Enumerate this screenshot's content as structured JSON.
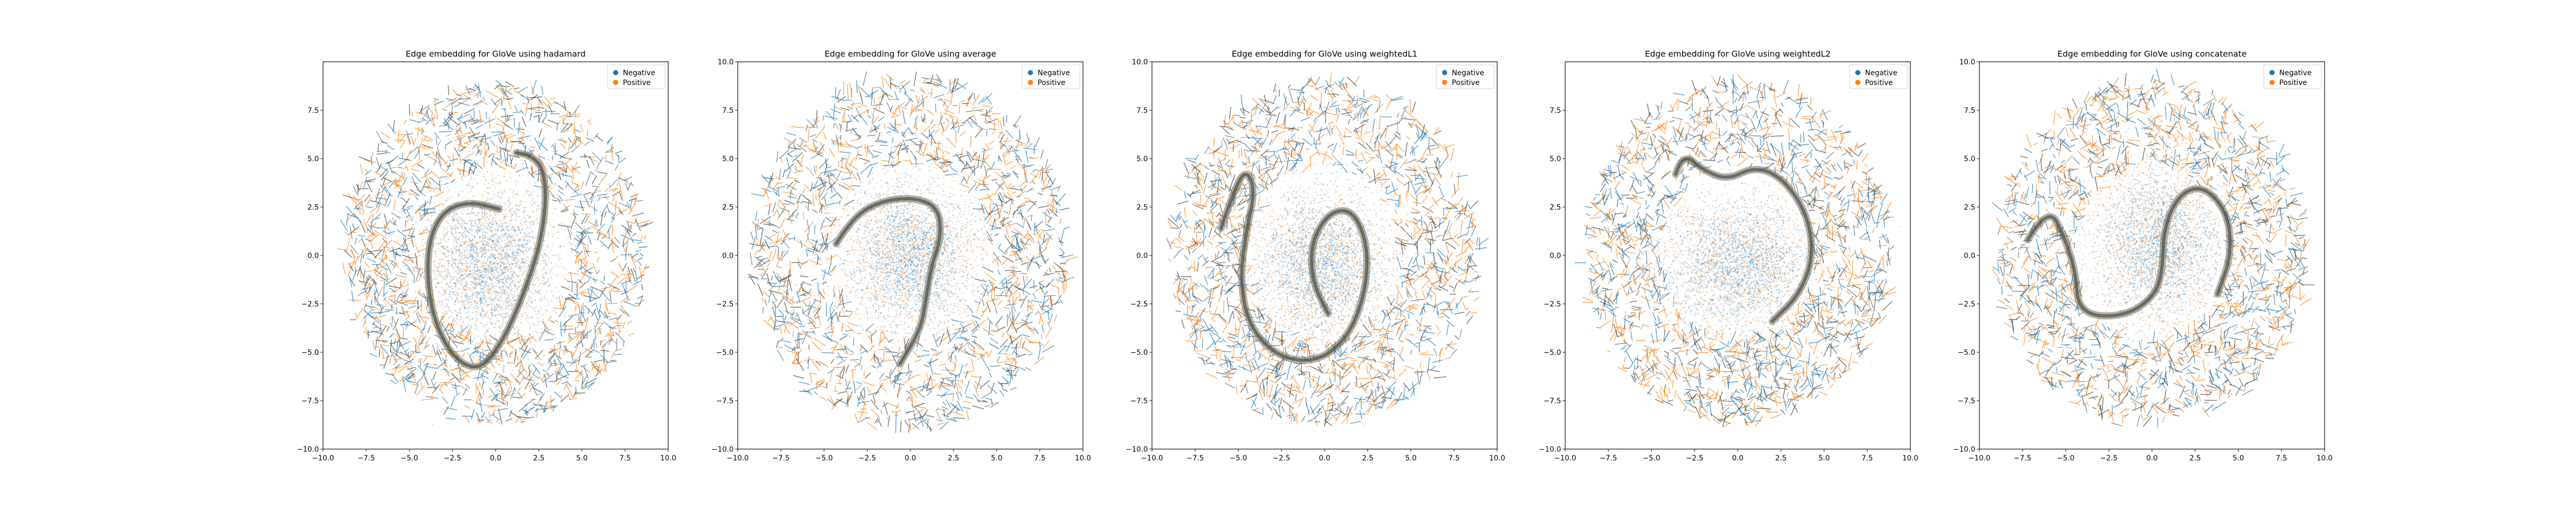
{
  "figure": {
    "background": "#ffffff"
  },
  "colors": {
    "negative": "#1f77b4",
    "positive": "#ff7f0e",
    "band": "#6f6f62"
  },
  "legend": {
    "placement": "upper-right",
    "labels": [
      "Negative",
      "Positive"
    ]
  },
  "chart_data": [
    {
      "type": "scatter",
      "title": "Edge embedding for GloVe using hadamard",
      "xlim": [
        -10,
        10
      ],
      "ylim": [
        -10,
        10
      ],
      "xticks": [
        -10.0,
        -7.5,
        -5.0,
        -2.5,
        0.0,
        2.5,
        5.0,
        7.5,
        10.0
      ],
      "xtick_labels": [
        "−10.0",
        "−7.5",
        "−5.0",
        "−2.5",
        "0.0",
        "2.5",
        "5.0",
        "7.5",
        "10.0"
      ],
      "yticks": [
        -10.0,
        -7.5,
        -5.0,
        -2.5,
        0.0,
        2.5,
        5.0,
        7.5
      ],
      "ytick_labels": [
        "−10.0",
        "−7.5",
        "−5.0",
        "−2.5",
        "0.0",
        "2.5",
        "5.0",
        "7.5"
      ],
      "series": [
        {
          "name": "Negative"
        },
        {
          "name": "Positive"
        }
      ],
      "cloud_radius": 8.8,
      "core": {
        "cx": -0.4,
        "cy": -0.4,
        "rx": 4.2,
        "ry": 4.8
      },
      "band": [
        [
          1.2,
          5.3
        ],
        [
          2.4,
          5.2
        ],
        [
          3.0,
          3.5
        ],
        [
          2.6,
          0.5
        ],
        [
          1.4,
          -2.5
        ],
        [
          0.3,
          -4.6
        ],
        [
          -1.0,
          -6.0
        ],
        [
          -2.6,
          -5.2
        ],
        [
          -3.8,
          -2.8
        ],
        [
          -4.0,
          0.3
        ],
        [
          -3.2,
          2.2
        ],
        [
          -1.6,
          2.8
        ],
        [
          0.2,
          2.4
        ]
      ]
    },
    {
      "type": "scatter",
      "title": "Edge embedding for GloVe using average",
      "xlim": [
        -10,
        10
      ],
      "ylim": [
        -10,
        10
      ],
      "xticks": [
        -10.0,
        -7.5,
        -5.0,
        -2.5,
        0.0,
        2.5,
        5.0,
        7.5,
        10.0
      ],
      "xtick_labels": [
        "−10.0",
        "−7.5",
        "−5.0",
        "−2.5",
        "0.0",
        "2.5",
        "5.0",
        "7.5",
        "10.0"
      ],
      "yticks": [
        -10.0,
        -7.5,
        -5.0,
        -2.5,
        0.0,
        2.5,
        5.0,
        7.5,
        10.0
      ],
      "ytick_labels": [
        "−10.0",
        "−7.5",
        "−5.0",
        "−2.5",
        "0.0",
        "2.5",
        "5.0",
        "7.5",
        "10.0"
      ],
      "series": [
        {
          "name": "Negative"
        },
        {
          "name": "Positive"
        }
      ],
      "cloud_radius": 9.2,
      "core": {
        "cx": 0.0,
        "cy": 0.0,
        "rx": 4.3,
        "ry": 4.3
      },
      "band": [
        [
          -4.3,
          0.6
        ],
        [
          -3.4,
          1.9
        ],
        [
          -1.8,
          2.8
        ],
        [
          0.2,
          3.0
        ],
        [
          1.6,
          2.5
        ],
        [
          1.8,
          1.0
        ],
        [
          1.2,
          -0.6
        ],
        [
          0.9,
          -2.3
        ],
        [
          0.6,
          -3.8
        ],
        [
          -0.6,
          -5.6
        ]
      ]
    },
    {
      "type": "scatter",
      "title": "Edge embedding for GloVe using weightedL1",
      "xlim": [
        -10,
        10
      ],
      "ylim": [
        -10,
        10
      ],
      "xticks": [
        -10.0,
        -7.5,
        -5.0,
        -2.5,
        0.0,
        2.5,
        5.0,
        7.5,
        10.0
      ],
      "xtick_labels": [
        "−10.0",
        "−7.5",
        "−5.0",
        "−2.5",
        "0.0",
        "2.5",
        "5.0",
        "7.5",
        "10.0"
      ],
      "yticks": [
        -10.0,
        -7.5,
        -5.0,
        -2.5,
        0.0,
        2.5,
        5.0,
        7.5,
        10.0
      ],
      "ytick_labels": [
        "−10.0",
        "−7.5",
        "−5.0",
        "−2.5",
        "0.0",
        "2.5",
        "5.0",
        "7.5",
        "10.0"
      ],
      "series": [
        {
          "name": "Negative"
        },
        {
          "name": "Positive"
        }
      ],
      "cloud_radius": 9.0,
      "core": {
        "cx": -0.2,
        "cy": -0.6,
        "rx": 4.4,
        "ry": 4.6
      },
      "band": [
        [
          -6.0,
          1.4
        ],
        [
          -5.4,
          3.0
        ],
        [
          -4.6,
          4.5
        ],
        [
          -4.0,
          3.4
        ],
        [
          -4.6,
          1.0
        ],
        [
          -4.9,
          -1.5
        ],
        [
          -4.3,
          -3.8
        ],
        [
          -2.6,
          -5.3
        ],
        [
          -0.4,
          -5.5
        ],
        [
          1.4,
          -4.2
        ],
        [
          2.4,
          -1.8
        ],
        [
          2.5,
          0.6
        ],
        [
          1.6,
          2.4
        ],
        [
          0.2,
          2.2
        ],
        [
          -0.8,
          0.6
        ],
        [
          -0.7,
          -1.4
        ],
        [
          0.2,
          -3.0
        ]
      ]
    },
    {
      "type": "scatter",
      "title": "Edge embedding for GloVe using weightedL2",
      "xlim": [
        -10,
        10
      ],
      "ylim": [
        -10,
        10
      ],
      "xticks": [
        -10.0,
        -7.5,
        -5.0,
        -2.5,
        0.0,
        2.5,
        5.0,
        7.5,
        10.0
      ],
      "xtick_labels": [
        "−10.0",
        "−7.5",
        "−5.0",
        "−2.5",
        "0.0",
        "2.5",
        "5.0",
        "7.5",
        "10.0"
      ],
      "yticks": [
        -10.0,
        -7.5,
        -5.0,
        -2.5,
        0.0,
        2.5,
        5.0,
        7.5
      ],
      "ytick_labels": [
        "−10.0",
        "−7.5",
        "−5.0",
        "−2.5",
        "0.0",
        "2.5",
        "5.0",
        "7.5"
      ],
      "series": [
        {
          "name": "Negative"
        },
        {
          "name": "Positive"
        }
      ],
      "cloud_radius": 8.9,
      "core": {
        "cx": 0.0,
        "cy": -0.5,
        "rx": 5.0,
        "ry": 3.9
      },
      "band": [
        [
          -3.6,
          4.2
        ],
        [
          -3.2,
          5.3
        ],
        [
          -2.0,
          4.4
        ],
        [
          -0.6,
          3.9
        ],
        [
          1.0,
          4.6
        ],
        [
          2.6,
          4.0
        ],
        [
          4.0,
          2.2
        ],
        [
          4.4,
          0.0
        ],
        [
          3.6,
          -2.0
        ],
        [
          2.0,
          -3.4
        ]
      ]
    },
    {
      "type": "scatter",
      "title": "Edge embedding for GloVe using concatenate",
      "xlim": [
        -10,
        10
      ],
      "ylim": [
        -10,
        10
      ],
      "xticks": [
        -10.0,
        -7.5,
        -5.0,
        -2.5,
        0.0,
        2.5,
        5.0,
        7.5,
        10.0
      ],
      "xtick_labels": [
        "−10.0",
        "−7.5",
        "−5.0",
        "−2.5",
        "0.0",
        "2.5",
        "5.0",
        "7.5",
        "10.0"
      ],
      "yticks": [
        -10.0,
        -7.5,
        -5.0,
        -2.5,
        0.0,
        2.5,
        5.0,
        7.5,
        10.0
      ],
      "ytick_labels": [
        "−10.0",
        "−7.5",
        "−5.0",
        "−2.5",
        "0.0",
        "2.5",
        "5.0",
        "7.5",
        "10.0"
      ],
      "series": [
        {
          "name": "Negative"
        },
        {
          "name": "Positive"
        }
      ],
      "cloud_radius": 9.0,
      "core": {
        "cx": 0.4,
        "cy": 0.6,
        "rx": 4.2,
        "ry": 4.6
      },
      "band": [
        [
          -7.2,
          0.8
        ],
        [
          -6.0,
          2.6
        ],
        [
          -5.0,
          0.8
        ],
        [
          -4.4,
          -1.0
        ],
        [
          -4.3,
          -2.6
        ],
        [
          -3.2,
          -3.2
        ],
        [
          -1.2,
          -3.0
        ],
        [
          0.2,
          -2.0
        ],
        [
          0.6,
          -0.8
        ],
        [
          0.7,
          1.5
        ],
        [
          1.6,
          3.2
        ],
        [
          3.0,
          3.6
        ],
        [
          4.4,
          2.2
        ],
        [
          4.6,
          0.0
        ],
        [
          3.8,
          -2.0
        ]
      ]
    }
  ]
}
